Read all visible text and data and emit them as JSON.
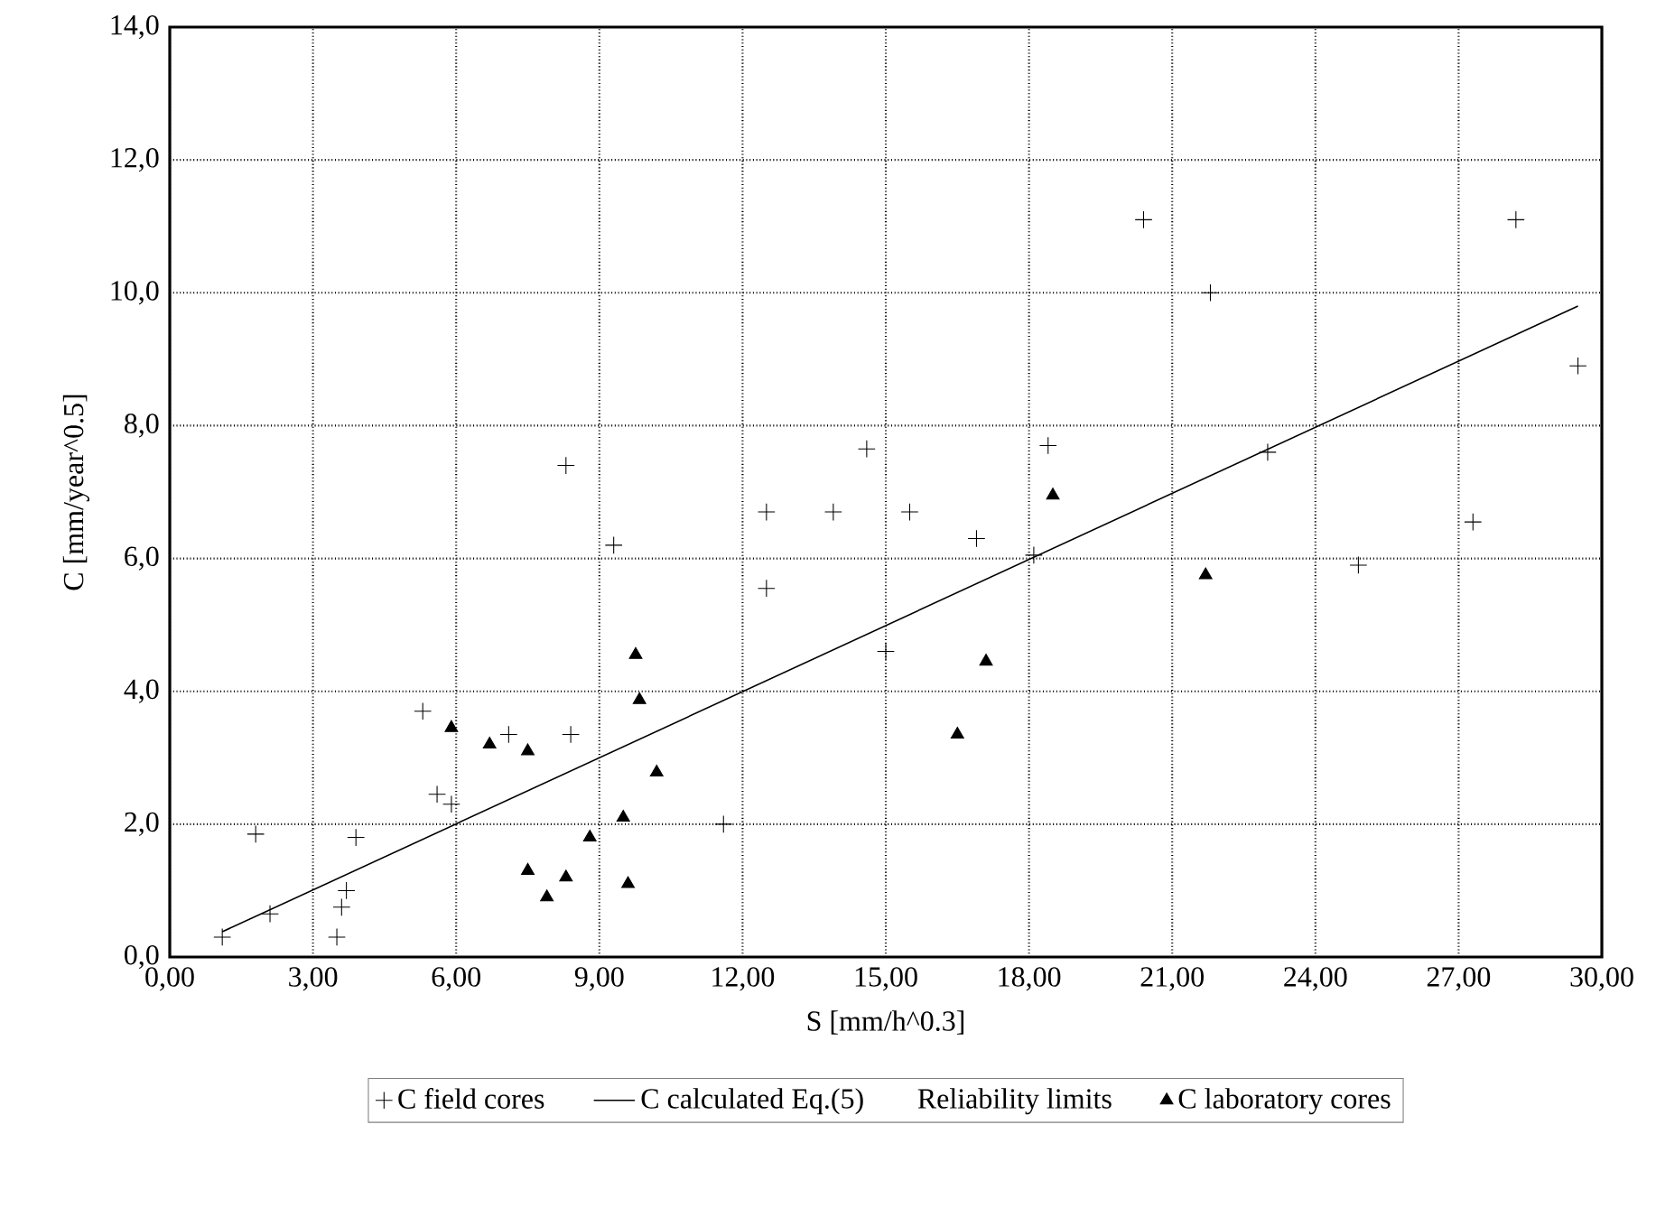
{
  "chart_data": {
    "type": "scatter",
    "xlabel": "S [mm/h^0.3]",
    "ylabel": "C [mm/year^0.5]",
    "xlim": [
      0,
      30
    ],
    "ylim": [
      0,
      14
    ],
    "xticks": [
      {
        "value": 0,
        "label": "0,00"
      },
      {
        "value": 3,
        "label": "3,00"
      },
      {
        "value": 6,
        "label": "6,00"
      },
      {
        "value": 9,
        "label": "9,00"
      },
      {
        "value": 12,
        "label": "12,00"
      },
      {
        "value": 15,
        "label": "15,00"
      },
      {
        "value": 18,
        "label": "18,00"
      },
      {
        "value": 21,
        "label": "21,00"
      },
      {
        "value": 24,
        "label": "24,00"
      },
      {
        "value": 27,
        "label": "27,00"
      },
      {
        "value": 30,
        "label": "30,00"
      }
    ],
    "yticks": [
      {
        "value": 0,
        "label": "0,0"
      },
      {
        "value": 2,
        "label": "2,0"
      },
      {
        "value": 4,
        "label": "4,0"
      },
      {
        "value": 6,
        "label": "6,0"
      },
      {
        "value": 8,
        "label": "8,0"
      },
      {
        "value": 10,
        "label": "10,0"
      },
      {
        "value": 12,
        "label": "12,0"
      },
      {
        "value": 14,
        "label": "14,0"
      }
    ],
    "grid": true,
    "legend": "bottom",
    "annotations": [
      "Reliability limits"
    ],
    "series": [
      {
        "name": "C field cores",
        "color": "#000000",
        "marker": "cross",
        "x": [
          1.1,
          2.1,
          1.8,
          3.5,
          3.6,
          3.7,
          3.9,
          5.3,
          5.6,
          5.9,
          7.1,
          8.4,
          9.3,
          8.3,
          11.6,
          12.5,
          12.5,
          13.9,
          14.6,
          15.0,
          15.5,
          16.9,
          18.1,
          18.4,
          20.4,
          21.8,
          23.0,
          24.9,
          27.3,
          28.2,
          29.5
        ],
        "values": [
          0.3,
          0.65,
          1.85,
          0.3,
          0.75,
          1.0,
          1.8,
          3.7,
          2.45,
          2.3,
          3.35,
          3.35,
          6.2,
          7.4,
          2.0,
          5.55,
          6.7,
          6.7,
          7.65,
          4.6,
          6.7,
          6.3,
          6.05,
          7.7,
          11.1,
          10.0,
          7.6,
          5.9,
          6.55,
          11.1,
          8.9
        ]
      },
      {
        "name": "C calculated Eq.(5)",
        "type": "line",
        "color": "#000000",
        "marker": "none",
        "x": [
          1.1,
          29.5
        ],
        "values": [
          0.38,
          9.8
        ]
      },
      {
        "name": "C laboratory cores",
        "color": "#000000",
        "marker": "triangle",
        "x": [
          5.9,
          6.7,
          7.5,
          7.5,
          7.9,
          8.3,
          8.8,
          9.5,
          9.6,
          9.76,
          9.84,
          10.2,
          16.5,
          17.1,
          18.5,
          21.7
        ],
        "values": [
          3.45,
          3.2,
          3.1,
          1.3,
          0.9,
          1.2,
          1.8,
          2.1,
          1.1,
          4.55,
          3.87,
          2.78,
          3.35,
          4.45,
          6.95,
          5.75
        ]
      }
    ]
  }
}
